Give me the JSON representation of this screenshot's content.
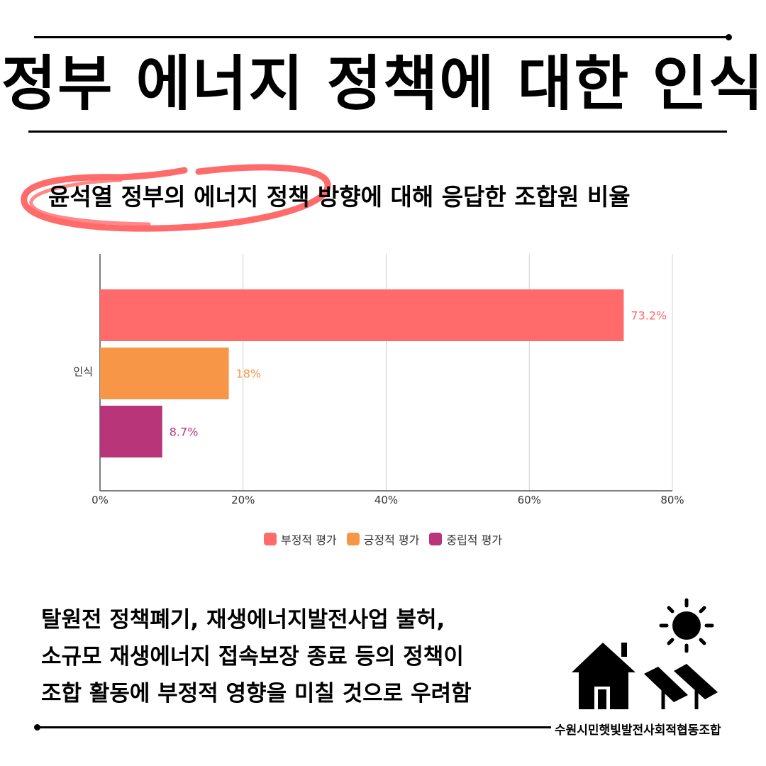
{
  "title": "정부 에너지 정책에 대한 인식",
  "subtitle": "윤석열 정부의 에너지 정책 방향에 대해  응답한 조합원 비율",
  "chart_data": {
    "type": "bar",
    "orientation": "horizontal",
    "categories": [
      "인식"
    ],
    "series": [
      {
        "name": "부정적 평가",
        "values": [
          73.2
        ],
        "label": "73.2%",
        "color": "#FF6B6B"
      },
      {
        "name": "긍정적 평가",
        "values": [
          18
        ],
        "label": "18%",
        "color": "#F79646"
      },
      {
        "name": "중립적 평가",
        "values": [
          8.7
        ],
        "label": "8.7%",
        "color": "#B8357A"
      }
    ],
    "xlim": [
      0,
      80
    ],
    "xticks": [
      "0%",
      "20%",
      "40%",
      "60%",
      "80%"
    ],
    "grid": true,
    "legend": "bottom"
  },
  "body_lines": [
    "탈원전 정책폐기, 재생에너지발전사업 불허,",
    "소규모 재생에너지 접속보장 종료 등의 정책이",
    "조합 활동에 부정적 영향을 미칠 것으로 우려함"
  ],
  "organization": "수원시민햇빛발전사회적협동조합",
  "colors": {
    "highlight": "#FF6B6B",
    "text": "#000000",
    "grid": "#d0d0d0"
  },
  "icons": [
    "sun-icon",
    "house-icon",
    "solar-panel-icon"
  ]
}
